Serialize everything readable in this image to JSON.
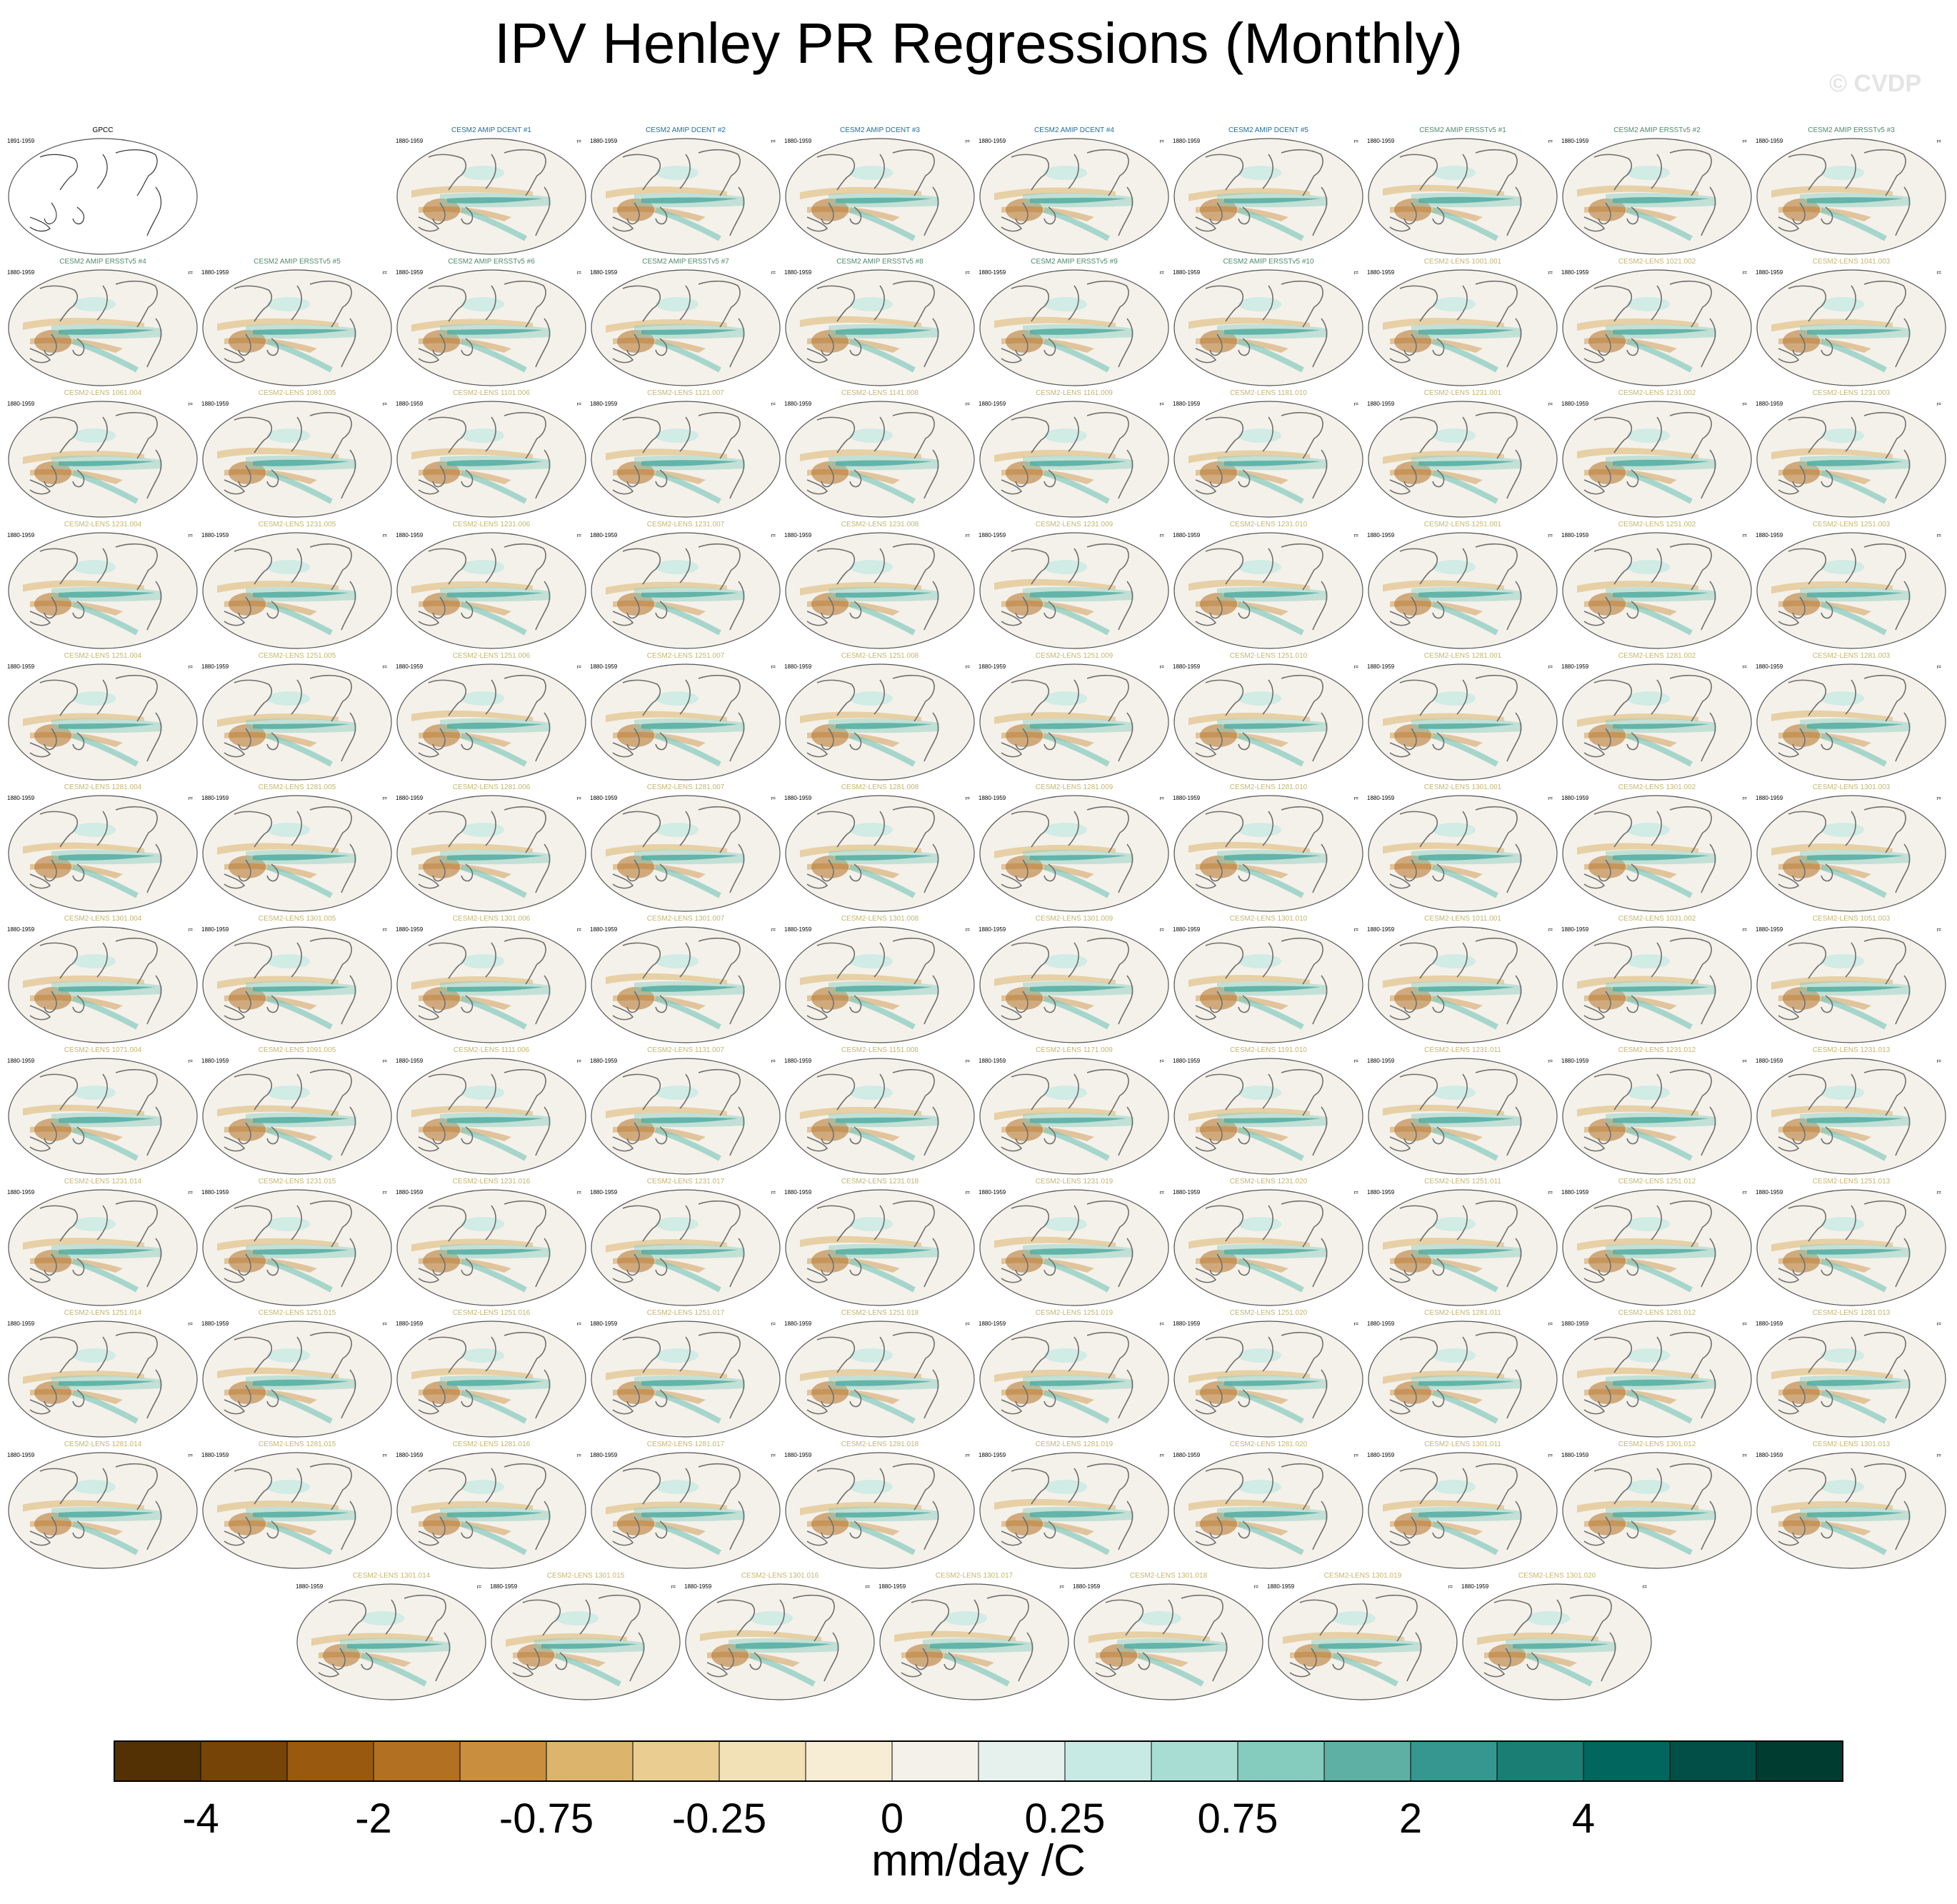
{
  "title": "IPV Henley PR Regressions (Monthly)",
  "watermark": "© CVDP",
  "colorbar": {
    "units": "mm/day /C",
    "tick_labels": [
      "-4",
      "-2",
      "-0.75",
      "-0.25",
      "0",
      "0.25",
      "0.75",
      "2",
      "4"
    ],
    "colors": [
      "#543005",
      "#774408",
      "#995A0F",
      "#B27023",
      "#C98E3E",
      "#DCB46C",
      "#E9CD91",
      "#F2E1B6",
      "#F6EDD4",
      "#F4F1EA",
      "#E6F1EE",
      "#C8EAE4",
      "#A8DDD3",
      "#85CBBE",
      "#5EB0A4",
      "#35978F",
      "#1A7E75",
      "#01665E",
      "#014F46",
      "#003C30"
    ]
  },
  "panel_period_label": "1880-1959",
  "panel_rank_label": "r=",
  "chart_data": {
    "type": "map-grid",
    "title": "IPV Henley PR Regressions (Monthly)",
    "variable": "PR regression on IPV Henley index",
    "units": "mm/day /C",
    "colorbar_levels": [
      "-4",
      "-2",
      "-0.75",
      "-0.25",
      "0",
      "0.25",
      "0.75",
      "2",
      "4"
    ],
    "panels": [
      {
        "name": "GPCC",
        "period": "1891-1959",
        "type": "obs"
      },
      {
        "name": "",
        "type": "blank"
      },
      {
        "name": "CESM2 AMIP DCENT #1",
        "period": "1880-1959",
        "type": "amip-dcent"
      },
      {
        "name": "CESM2 AMIP DCENT #2",
        "period": "1880-1959",
        "type": "amip-dcent"
      },
      {
        "name": "CESM2 AMIP DCENT #3",
        "period": "1880-1959",
        "type": "amip-dcent"
      },
      {
        "name": "CESM2 AMIP DCENT #4",
        "period": "1880-1959",
        "type": "amip-dcent"
      },
      {
        "name": "CESM2 AMIP DCENT #5",
        "period": "1880-1959",
        "type": "amip-dcent"
      },
      {
        "name": "CESM2 AMIP ERSSTv5 #1",
        "period": "1880-1959",
        "type": "amip-ersst"
      },
      {
        "name": "CESM2 AMIP ERSSTv5 #2",
        "period": "1880-1959",
        "type": "amip-ersst"
      },
      {
        "name": "CESM2 AMIP ERSSTv5 #3",
        "period": "1880-1959",
        "type": "amip-ersst"
      },
      {
        "name": "CESM2 AMIP ERSSTv5 #4",
        "period": "1880-1959",
        "type": "amip-ersst"
      },
      {
        "name": "CESM2 AMIP ERSSTv5 #5",
        "period": "1880-1959",
        "type": "amip-ersst"
      },
      {
        "name": "CESM2 AMIP ERSSTv5 #6",
        "period": "1880-1959",
        "type": "amip-ersst"
      },
      {
        "name": "CESM2 AMIP ERSSTv5 #7",
        "period": "1880-1959",
        "type": "amip-ersst"
      },
      {
        "name": "CESM2 AMIP ERSSTv5 #8",
        "period": "1880-1959",
        "type": "amip-ersst"
      },
      {
        "name": "CESM2 AMIP ERSSTv5 #9",
        "period": "1880-1959",
        "type": "amip-ersst"
      },
      {
        "name": "CESM2 AMIP ERSSTv5 #10",
        "period": "1880-1959",
        "type": "amip-ersst"
      },
      {
        "name": "CESM2-LENS 1001.001",
        "period": "1880-1959",
        "type": "lens"
      },
      {
        "name": "CESM2-LENS 1021.002",
        "period": "1880-1959",
        "type": "lens"
      },
      {
        "name": "CESM2-LENS 1041.003",
        "period": "1880-1959",
        "type": "lens"
      },
      {
        "name": "CESM2-LENS 1061.004",
        "period": "1880-1959",
        "type": "lens"
      },
      {
        "name": "CESM2-LENS 1081.005",
        "period": "1880-1959",
        "type": "lens"
      },
      {
        "name": "CESM2-LENS 1101.006",
        "period": "1880-1959",
        "type": "lens"
      },
      {
        "name": "CESM2-LENS 1121.007",
        "period": "1880-1959",
        "type": "lens"
      },
      {
        "name": "CESM2-LENS 1141.008",
        "period": "1880-1959",
        "type": "lens"
      },
      {
        "name": "CESM2-LENS 1161.009",
        "period": "1880-1959",
        "type": "lens"
      },
      {
        "name": "CESM2-LENS 1181.010",
        "period": "1880-1959",
        "type": "lens"
      },
      {
        "name": "CESM2-LENS 1231.001",
        "period": "1880-1959",
        "type": "lens"
      },
      {
        "name": "CESM2-LENS 1231.002",
        "period": "1880-1959",
        "type": "lens"
      },
      {
        "name": "CESM2-LENS 1231.003",
        "period": "1880-1959",
        "type": "lens"
      },
      {
        "name": "CESM2-LENS 1231.004",
        "period": "1880-1959",
        "type": "lens"
      },
      {
        "name": "CESM2-LENS 1231.005",
        "period": "1880-1959",
        "type": "lens"
      },
      {
        "name": "CESM2-LENS 1231.006",
        "period": "1880-1959",
        "type": "lens"
      },
      {
        "name": "CESM2-LENS 1231.007",
        "period": "1880-1959",
        "type": "lens"
      },
      {
        "name": "CESM2-LENS 1231.008",
        "period": "1880-1959",
        "type": "lens"
      },
      {
        "name": "CESM2-LENS 1231.009",
        "period": "1880-1959",
        "type": "lens"
      },
      {
        "name": "CESM2-LENS 1231.010",
        "period": "1880-1959",
        "type": "lens"
      },
      {
        "name": "CESM2-LENS 1251.001",
        "period": "1880-1959",
        "type": "lens"
      },
      {
        "name": "CESM2-LENS 1251.002",
        "period": "1880-1959",
        "type": "lens"
      },
      {
        "name": "CESM2-LENS 1251.003",
        "period": "1880-1959",
        "type": "lens"
      },
      {
        "name": "CESM2-LENS 1251.004",
        "period": "1880-1959",
        "type": "lens"
      },
      {
        "name": "CESM2-LENS 1251.005",
        "period": "1880-1959",
        "type": "lens"
      },
      {
        "name": "CESM2-LENS 1251.006",
        "period": "1880-1959",
        "type": "lens"
      },
      {
        "name": "CESM2-LENS 1251.007",
        "period": "1880-1959",
        "type": "lens"
      },
      {
        "name": "CESM2-LENS 1251.008",
        "period": "1880-1959",
        "type": "lens"
      },
      {
        "name": "CESM2-LENS 1251.009",
        "period": "1880-1959",
        "type": "lens"
      },
      {
        "name": "CESM2-LENS 1251.010",
        "period": "1880-1959",
        "type": "lens"
      },
      {
        "name": "CESM2-LENS 1281.001",
        "period": "1880-1959",
        "type": "lens"
      },
      {
        "name": "CESM2-LENS 1281.002",
        "period": "1880-1959",
        "type": "lens"
      },
      {
        "name": "CESM2-LENS 1281.003",
        "period": "1880-1959",
        "type": "lens"
      },
      {
        "name": "CESM2-LENS 1281.004",
        "period": "1880-1959",
        "type": "lens"
      },
      {
        "name": "CESM2-LENS 1281.005",
        "period": "1880-1959",
        "type": "lens"
      },
      {
        "name": "CESM2-LENS 1281.006",
        "period": "1880-1959",
        "type": "lens"
      },
      {
        "name": "CESM2-LENS 1281.007",
        "period": "1880-1959",
        "type": "lens"
      },
      {
        "name": "CESM2-LENS 1281.008",
        "period": "1880-1959",
        "type": "lens"
      },
      {
        "name": "CESM2-LENS 1281.009",
        "period": "1880-1959",
        "type": "lens"
      },
      {
        "name": "CESM2-LENS 1281.010",
        "period": "1880-1959",
        "type": "lens"
      },
      {
        "name": "CESM2-LENS 1301.001",
        "period": "1880-1959",
        "type": "lens"
      },
      {
        "name": "CESM2-LENS 1301.002",
        "period": "1880-1959",
        "type": "lens"
      },
      {
        "name": "CESM2-LENS 1301.003",
        "period": "1880-1959",
        "type": "lens"
      },
      {
        "name": "CESM2-LENS 1301.004",
        "period": "1880-1959",
        "type": "lens"
      },
      {
        "name": "CESM2-LENS 1301.005",
        "period": "1880-1959",
        "type": "lens"
      },
      {
        "name": "CESM2-LENS 1301.006",
        "period": "1880-1959",
        "type": "lens"
      },
      {
        "name": "CESM2-LENS 1301.007",
        "period": "1880-1959",
        "type": "lens"
      },
      {
        "name": "CESM2-LENS 1301.008",
        "period": "1880-1959",
        "type": "lens"
      },
      {
        "name": "CESM2-LENS 1301.009",
        "period": "1880-1959",
        "type": "lens"
      },
      {
        "name": "CESM2-LENS 1301.010",
        "period": "1880-1959",
        "type": "lens"
      },
      {
        "name": "CESM2-LENS 1011.001",
        "period": "1880-1959",
        "type": "lens"
      },
      {
        "name": "CESM2-LENS 1031.002",
        "period": "1880-1959",
        "type": "lens"
      },
      {
        "name": "CESM2-LENS 1051.003",
        "period": "1880-1959",
        "type": "lens"
      },
      {
        "name": "CESM2-LENS 1071.004",
        "period": "1880-1959",
        "type": "lens"
      },
      {
        "name": "CESM2-LENS 1091.005",
        "period": "1880-1959",
        "type": "lens"
      },
      {
        "name": "CESM2-LENS 1111.006",
        "period": "1880-1959",
        "type": "lens"
      },
      {
        "name": "CESM2-LENS 1131.007",
        "period": "1880-1959",
        "type": "lens"
      },
      {
        "name": "CESM2-LENS 1151.008",
        "period": "1880-1959",
        "type": "lens"
      },
      {
        "name": "CESM2-LENS 1171.009",
        "period": "1880-1959",
        "type": "lens"
      },
      {
        "name": "CESM2-LENS 1191.010",
        "period": "1880-1959",
        "type": "lens"
      },
      {
        "name": "CESM2-LENS 1231.011",
        "period": "1880-1959",
        "type": "lens"
      },
      {
        "name": "CESM2-LENS 1231.012",
        "period": "1880-1959",
        "type": "lens"
      },
      {
        "name": "CESM2-LENS 1231.013",
        "period": "1880-1959",
        "type": "lens"
      },
      {
        "name": "CESM2-LENS 1231.014",
        "period": "1880-1959",
        "type": "lens"
      },
      {
        "name": "CESM2-LENS 1231.015",
        "period": "1880-1959",
        "type": "lens"
      },
      {
        "name": "CESM2-LENS 1231.016",
        "period": "1880-1959",
        "type": "lens"
      },
      {
        "name": "CESM2-LENS 1231.017",
        "period": "1880-1959",
        "type": "lens"
      },
      {
        "name": "CESM2-LENS 1231.018",
        "period": "1880-1959",
        "type": "lens"
      },
      {
        "name": "CESM2-LENS 1231.019",
        "period": "1880-1959",
        "type": "lens"
      },
      {
        "name": "CESM2-LENS 1231.020",
        "period": "1880-1959",
        "type": "lens"
      },
      {
        "name": "CESM2-LENS 1251.011",
        "period": "1880-1959",
        "type": "lens"
      },
      {
        "name": "CESM2-LENS 1251.012",
        "period": "1880-1959",
        "type": "lens"
      },
      {
        "name": "CESM2-LENS 1251.013",
        "period": "1880-1959",
        "type": "lens"
      },
      {
        "name": "CESM2-LENS 1251.014",
        "period": "1880-1959",
        "type": "lens"
      },
      {
        "name": "CESM2-LENS 1251.015",
        "period": "1880-1959",
        "type": "lens"
      },
      {
        "name": "CESM2-LENS 1251.016",
        "period": "1880-1959",
        "type": "lens"
      },
      {
        "name": "CESM2-LENS 1251.017",
        "period": "1880-1959",
        "type": "lens"
      },
      {
        "name": "CESM2-LENS 1251.018",
        "period": "1880-1959",
        "type": "lens"
      },
      {
        "name": "CESM2-LENS 1251.019",
        "period": "1880-1959",
        "type": "lens"
      },
      {
        "name": "CESM2-LENS 1251.020",
        "period": "1880-1959",
        "type": "lens"
      },
      {
        "name": "CESM2-LENS 1281.011",
        "period": "1880-1959",
        "type": "lens"
      },
      {
        "name": "CESM2-LENS 1281.012",
        "period": "1880-1959",
        "type": "lens"
      },
      {
        "name": "CESM2-LENS 1281.013",
        "period": "1880-1959",
        "type": "lens"
      },
      {
        "name": "CESM2-LENS 1281.014",
        "period": "1880-1959",
        "type": "lens"
      },
      {
        "name": "CESM2-LENS 1281.015",
        "period": "1880-1959",
        "type": "lens"
      },
      {
        "name": "CESM2-LENS 1281.016",
        "period": "1880-1959",
        "type": "lens"
      },
      {
        "name": "CESM2-LENS 1281.017",
        "period": "1880-1959",
        "type": "lens"
      },
      {
        "name": "CESM2-LENS 1281.018",
        "period": "1880-1959",
        "type": "lens"
      },
      {
        "name": "CESM2-LENS 1281.019",
        "period": "1880-1959",
        "type": "lens"
      },
      {
        "name": "CESM2-LENS 1281.020",
        "period": "1880-1959",
        "type": "lens"
      },
      {
        "name": "CESM2-LENS 1301.011",
        "period": "1880-1959",
        "type": "lens"
      },
      {
        "name": "CESM2-LENS 1301.012",
        "period": "1880-1959",
        "type": "lens"
      },
      {
        "name": "CESM2-LENS 1301.013",
        "period": "1880-1959",
        "type": "lens"
      },
      {
        "name": "CESM2-LENS 1301.014",
        "period": "1880-1959",
        "type": "lens"
      },
      {
        "name": "CESM2-LENS 1301.015",
        "period": "1880-1959",
        "type": "lens"
      },
      {
        "name": "CESM2-LENS 1301.016",
        "period": "1880-1959",
        "type": "lens"
      },
      {
        "name": "CESM2-LENS 1301.017",
        "period": "1880-1959",
        "type": "lens"
      },
      {
        "name": "CESM2-LENS 1301.018",
        "period": "1880-1959",
        "type": "lens"
      },
      {
        "name": "CESM2-LENS 1301.019",
        "period": "1880-1959",
        "type": "lens"
      },
      {
        "name": "CESM2-LENS 1301.020",
        "period": "1880-1959",
        "type": "lens"
      }
    ]
  },
  "panel_title_colors": {
    "obs": "#000000",
    "amip-dcent": "#1F6E9C",
    "amip-ersst": "#4F8A6E",
    "lens": "#C4B56E"
  }
}
